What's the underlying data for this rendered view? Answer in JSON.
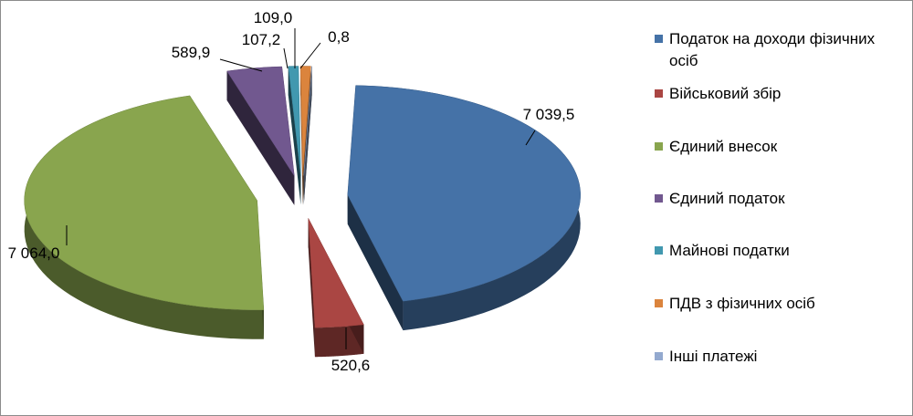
{
  "chart_data": {
    "type": "pie",
    "style": "exploded-3d",
    "legend_position": "right",
    "slices": [
      {
        "label": "Податок на доходи фізичних осіб",
        "value": 7039.5,
        "value_label": "7 039,5",
        "color": "#4572a7"
      },
      {
        "label": "Військовий збір",
        "value": 520.6,
        "value_label": "520,6",
        "color": "#aa4643"
      },
      {
        "label": "Єдиний внесок",
        "value": 7064.0,
        "value_label": "7 064,0",
        "color": "#89a54e"
      },
      {
        "label": "Єдиний податок",
        "value": 589.9,
        "value_label": "589,9",
        "color": "#71588f"
      },
      {
        "label": "Майнові податки",
        "value": 107.2,
        "value_label": "107,2",
        "color": "#4198af"
      },
      {
        "label": "ПДВ з фізичних осіб",
        "value": 109.0,
        "value_label": "109,0",
        "color": "#db843d"
      },
      {
        "label": "Інші платежі",
        "value": 0.8,
        "value_label": "0,8",
        "color": "#93a9cf"
      }
    ]
  }
}
